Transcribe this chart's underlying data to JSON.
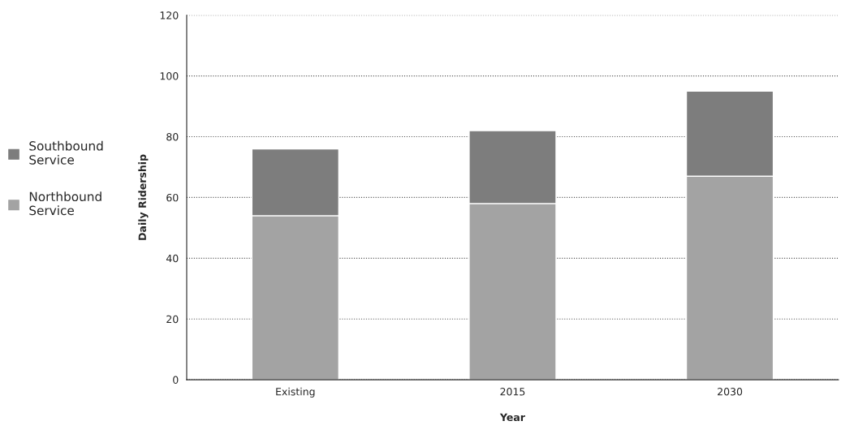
{
  "chart_data": {
    "type": "bar",
    "xlabel": "Year",
    "ylabel": "Daily Ridership",
    "categories": [
      "Existing",
      "2015",
      "2030"
    ],
    "series": [
      {
        "name": "Northbound Service",
        "color": "#a3a3a3",
        "values": [
          54,
          58,
          67
        ]
      },
      {
        "name": "Southbound Service",
        "color": "#7d7d7d",
        "values": [
          22,
          24,
          28
        ]
      }
    ],
    "stacked": true,
    "ylim": [
      0,
      120
    ],
    "yticks": [
      0,
      20,
      40,
      60,
      80,
      100,
      120
    ],
    "grid": "y",
    "legend": "left"
  }
}
